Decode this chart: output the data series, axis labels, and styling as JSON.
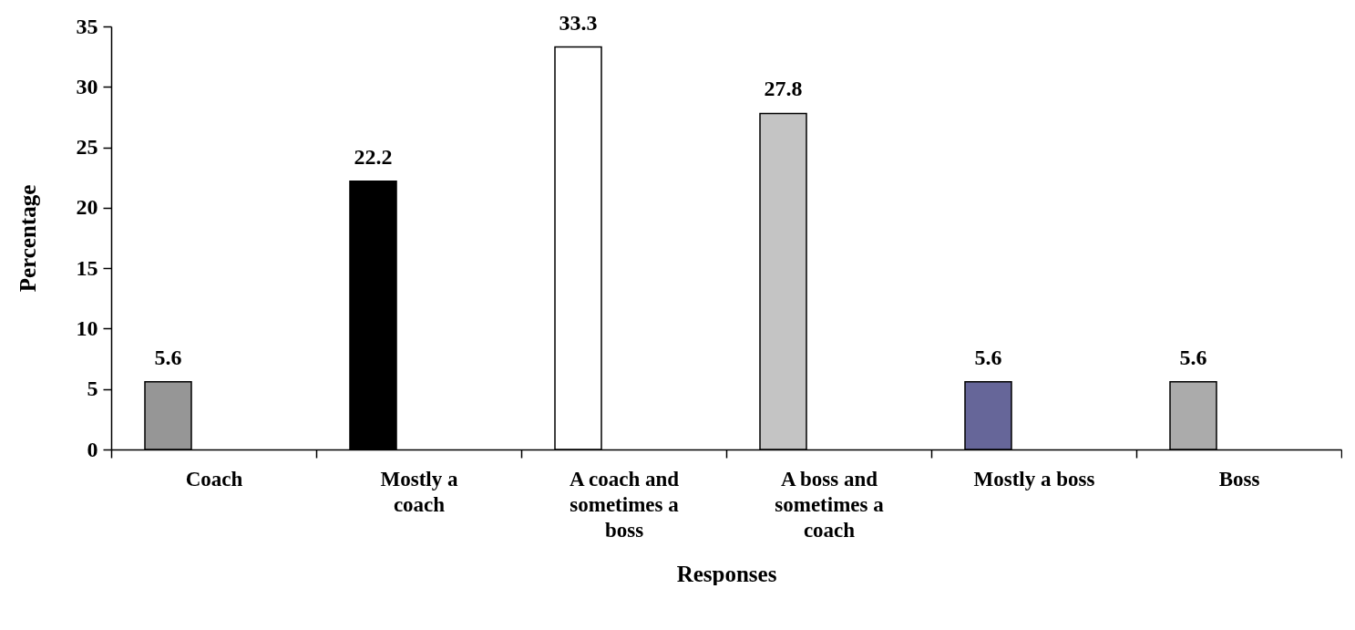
{
  "chart_data": {
    "type": "bar",
    "xlabel": "Responses",
    "ylabel": "Percentage",
    "categories": [
      "Coach",
      "Mostly a coach",
      "A coach and sometimes a boss",
      "A boss and sometimes a coach",
      "Mostly a boss",
      "Boss"
    ],
    "values": [
      5.6,
      22.2,
      33.3,
      27.8,
      5.6,
      5.6
    ],
    "colors": [
      "#969696",
      "#000000",
      "#ffffff",
      "#c4c4c4",
      "#666699",
      "#ababab"
    ],
    "ylim": [
      0,
      35
    ],
    "yticks": [
      0,
      5,
      10,
      15,
      20,
      25,
      30,
      35
    ],
    "data_labels": true
  }
}
